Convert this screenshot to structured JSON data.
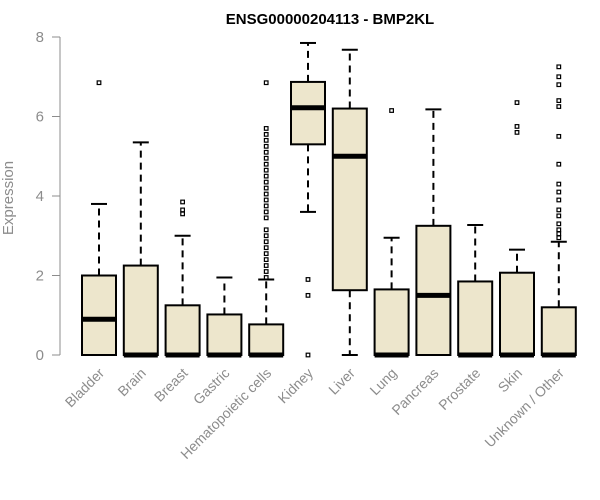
{
  "chart_data": {
    "type": "box",
    "title": "ENSG00000204113 - BMP2KL",
    "xlabel": "",
    "ylabel": "Expression",
    "ylim": [
      0,
      8
    ],
    "yticks": [
      0,
      2,
      4,
      6,
      8
    ],
    "grid": false,
    "legend": "none",
    "box_fill": "#ede6cc",
    "box_stroke": "#000000",
    "categories": [
      "Bladder",
      "Brain",
      "Breast",
      "Gastric",
      "Hematopoietic cells",
      "Kidney",
      "Liver",
      "Lung",
      "Pancreas",
      "Prostate",
      "Skin",
      "Unknown / Other"
    ],
    "boxes": [
      {
        "min": 0,
        "q1": 0,
        "median": 0.9,
        "q3": 2.0,
        "max": 3.8,
        "outliers": [
          6.85
        ]
      },
      {
        "min": 0,
        "q1": 0,
        "median": 0,
        "q3": 2.25,
        "max": 5.35,
        "outliers": []
      },
      {
        "min": 0,
        "q1": 0,
        "median": 0,
        "q3": 1.25,
        "max": 3.0,
        "outliers": [
          3.55,
          3.65,
          3.85
        ]
      },
      {
        "min": 0,
        "q1": 0,
        "median": 0,
        "q3": 1.02,
        "max": 1.95,
        "outliers": []
      },
      {
        "min": 0,
        "q1": 0,
        "median": 0,
        "q3": 0.77,
        "max": 1.9,
        "outliers": [
          1.95,
          2.1,
          2.25,
          2.4,
          2.55,
          2.7,
          2.85,
          3.0,
          3.15,
          3.45,
          3.6,
          3.75,
          3.9,
          4.05,
          4.2,
          4.35,
          4.5,
          4.65,
          4.8,
          4.95,
          5.1,
          5.25,
          5.4,
          5.55,
          5.7,
          6.85
        ]
      },
      {
        "min": 3.6,
        "q1": 5.3,
        "median": 6.22,
        "q3": 6.87,
        "max": 7.85,
        "outliers": [
          1.9,
          1.5,
          0
        ]
      },
      {
        "min": 0,
        "q1": 1.63,
        "median": 5.0,
        "q3": 6.2,
        "max": 7.68,
        "outliers": []
      },
      {
        "min": 0,
        "q1": 0,
        "median": 0,
        "q3": 1.65,
        "max": 2.95,
        "outliers": [
          6.15
        ]
      },
      {
        "min": 0,
        "q1": 0,
        "median": 1.5,
        "q3": 3.25,
        "max": 6.18,
        "outliers": []
      },
      {
        "min": 0,
        "q1": 0,
        "median": 0,
        "q3": 1.85,
        "max": 3.27,
        "outliers": []
      },
      {
        "min": 0,
        "q1": 0,
        "median": 0,
        "q3": 2.07,
        "max": 2.65,
        "outliers": [
          5.6,
          5.75,
          6.35
        ]
      },
      {
        "min": 0,
        "q1": 0,
        "median": 0,
        "q3": 1.2,
        "max": 2.85,
        "outliers": [
          2.95,
          3.05,
          3.15,
          3.3,
          3.5,
          3.65,
          3.9,
          4.1,
          4.3,
          4.8,
          5.5,
          6.25,
          6.4,
          6.8,
          7.0,
          7.25
        ]
      }
    ]
  }
}
